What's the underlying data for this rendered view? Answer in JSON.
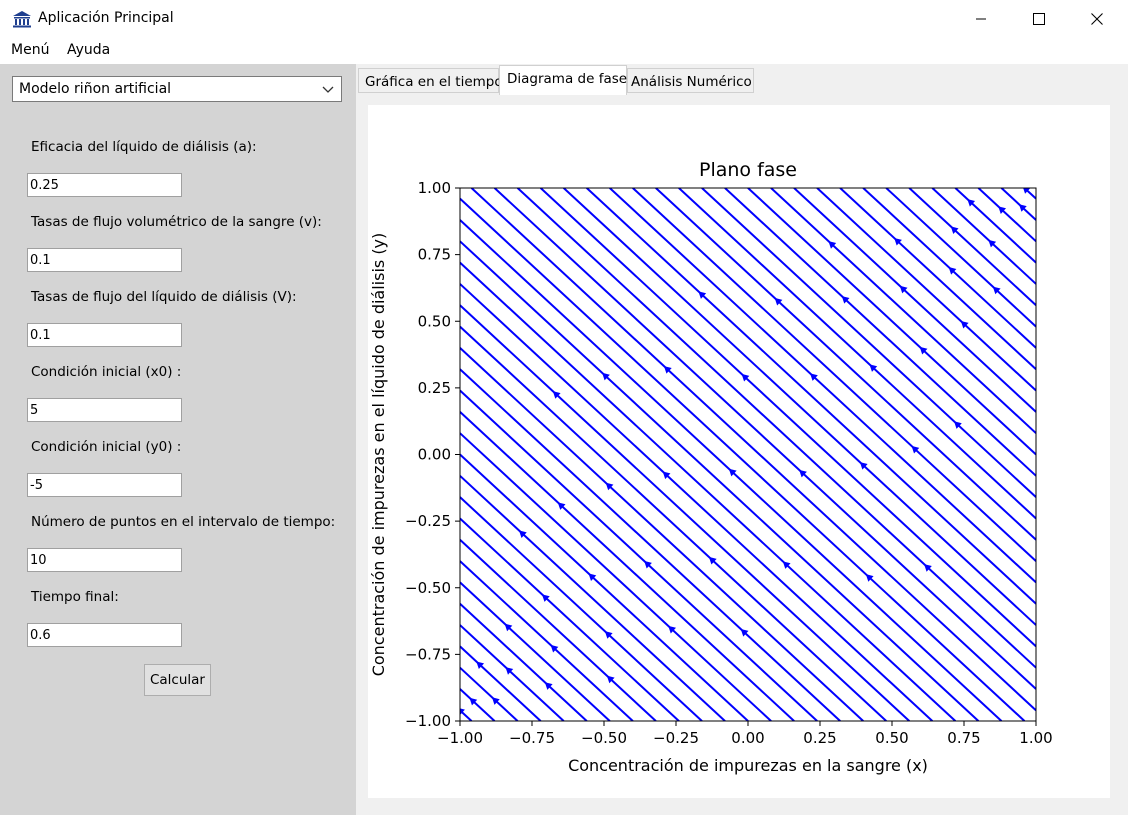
{
  "window": {
    "title": "Aplicación Principal"
  },
  "menu": {
    "items": [
      "Menú",
      "Ayuda"
    ]
  },
  "sidebar": {
    "model_select": "Modelo riñon artificial",
    "fields": [
      {
        "label": "Eficacia del líquido de diálisis (a):",
        "value": "0.25"
      },
      {
        "label": "Tasas de flujo volumétrico de la sangre (v):",
        "value": "0.1"
      },
      {
        "label": "Tasas de flujo del líquido de diálisis (V):",
        "value": "0.1"
      },
      {
        "label": "Condición inicial (x0) :",
        "value": "5"
      },
      {
        "label": "Condición inicial (y0) :",
        "value": "-5"
      },
      {
        "label": "Número de puntos en el intervalo de tiempo:",
        "value": "10"
      },
      {
        "label": "Tiempo final:",
        "value": "0.6"
      }
    ],
    "calc_button": "Calcular"
  },
  "tabs": [
    "Gráfica en el tiempo",
    "Diagrama de fase",
    "Análisis Numérico"
  ],
  "active_tab": 1,
  "chart_data": {
    "type": "streamplot",
    "title": "Plano fase",
    "xlabel": "Concentración de impurezas en la sangre (x)",
    "ylabel": "Concentración de impurezas en el líquido de diálisis (y)",
    "xlim": [
      -1.0,
      1.0
    ],
    "ylim": [
      -1.0,
      1.0
    ],
    "xticks": [
      "−1.00",
      "−0.75",
      "−0.50",
      "−0.25",
      "0.00",
      "0.25",
      "0.50",
      "0.75",
      "1.00"
    ],
    "yticks": [
      "1.00",
      "0.75",
      "0.50",
      "0.25",
      "0.00",
      "−0.25",
      "−0.50",
      "−0.75",
      "−1.00"
    ],
    "parameters": {
      "a": 0.25,
      "v": 0.1,
      "V": 0.1
    },
    "streamline_color": "#0000ff",
    "background_stream_color": "#ffb0b0",
    "grid": false
  },
  "icons": {
    "app": "bank-icon",
    "minimize": "minimize-icon",
    "maximize": "maximize-icon",
    "close": "close-icon",
    "dropdown": "chevron-down-icon"
  }
}
